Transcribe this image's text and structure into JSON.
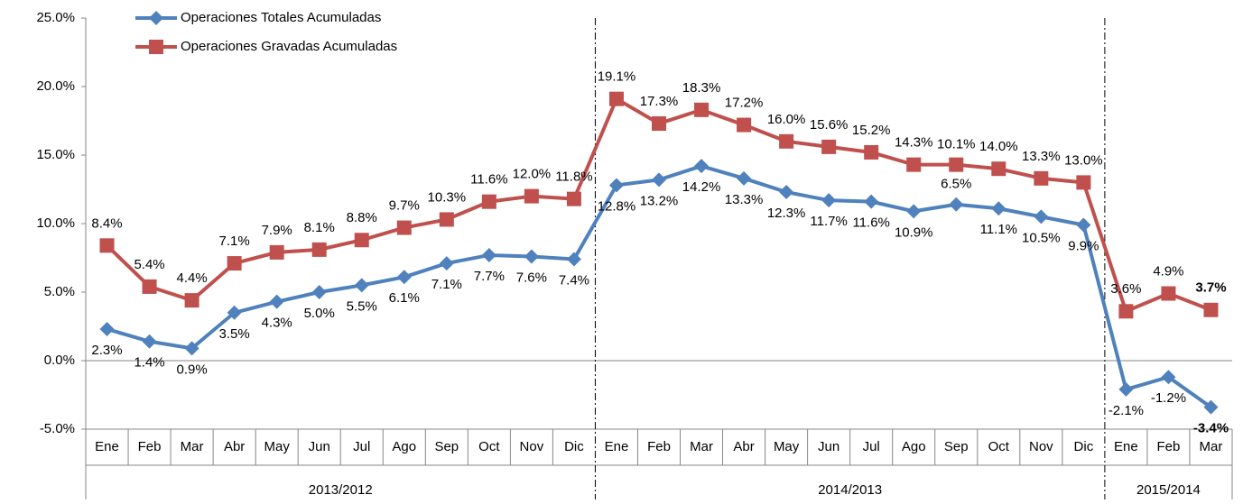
{
  "chart_data": {
    "type": "line",
    "groups": [
      {
        "name": "2013/2012",
        "categories": [
          "Ene",
          "Feb",
          "Mar",
          "Abr",
          "May",
          "Jun",
          "Jul",
          "Ago",
          "Sep",
          "Oct",
          "Nov",
          "Dic"
        ]
      },
      {
        "name": "2014/2013",
        "categories": [
          "Ene",
          "Feb",
          "Mar",
          "Abr",
          "May",
          "Jun",
          "Jul",
          "Ago",
          "Sep",
          "Oct",
          "Nov",
          "Dic"
        ]
      },
      {
        "name": "2015/2014",
        "categories": [
          "Ene",
          "Feb",
          "Mar"
        ]
      }
    ],
    "series": [
      {
        "name": "Operaciones Totales Acumuladas",
        "color": "#4f81bd",
        "marker": "diamond",
        "values": [
          2.3,
          1.4,
          0.9,
          3.5,
          4.3,
          5.0,
          5.5,
          6.1,
          7.1,
          7.7,
          7.6,
          7.4,
          12.8,
          13.2,
          14.2,
          13.3,
          12.3,
          11.7,
          11.6,
          10.9,
          11.4,
          11.1,
          10.5,
          9.9,
          -2.1,
          -1.2,
          -3.4
        ],
        "value_labels": [
          "2.3%",
          "1.4%",
          "0.9%",
          "3.5%",
          "4.3%",
          "5.0%",
          "5.5%",
          "6.1%",
          "7.1%",
          "7.7%",
          "7.6%",
          "7.4%",
          "12.8%",
          "13.2%",
          "14.2%",
          "13.3%",
          "12.3%",
          "11.7%",
          "11.6%",
          "10.9%",
          null,
          "11.1%",
          "10.5%",
          "9.9%",
          "-2.1%",
          "-1.2%",
          "-3.4%"
        ]
      },
      {
        "name": "Operaciones Gravadas Acumuladas",
        "color": "#c0504d",
        "marker": "square",
        "values": [
          8.4,
          5.4,
          4.4,
          7.1,
          7.9,
          8.1,
          8.8,
          9.7,
          10.3,
          11.6,
          12.0,
          11.8,
          19.1,
          17.3,
          18.3,
          17.2,
          16.0,
          15.6,
          15.2,
          14.3,
          14.3,
          14.0,
          13.3,
          13.0,
          3.6,
          4.9,
          3.7
        ],
        "value_labels": [
          "8.4%",
          "5.4%",
          "4.4%",
          "7.1%",
          "7.9%",
          "8.1%",
          "8.8%",
          "9.7%",
          "10.3%",
          "11.6%",
          "12.0%",
          "11.8%",
          "19.1%",
          "17.3%",
          "18.3%",
          "17.2%",
          "16.0%",
          "15.6%",
          "15.2%",
          "14.3%",
          null,
          "14.0%",
          "13.3%",
          "13.0%",
          "3.6%",
          "4.9%",
          "3.7%"
        ]
      }
    ],
    "annotations": [
      "10.1%",
      "6.5%"
    ],
    "ylim": [
      -5,
      25
    ],
    "yticks": [
      {
        "value": -5,
        "label": "-5.0%"
      },
      {
        "value": 0,
        "label": "0.0%"
      },
      {
        "value": 5,
        "label": "5.0%"
      },
      {
        "value": 10,
        "label": "10.0%"
      },
      {
        "value": 15,
        "label": "15.0%"
      },
      {
        "value": 20,
        "label": "20.0%"
      },
      {
        "value": 25,
        "label": "25.0%"
      }
    ],
    "legend": "top-left"
  }
}
